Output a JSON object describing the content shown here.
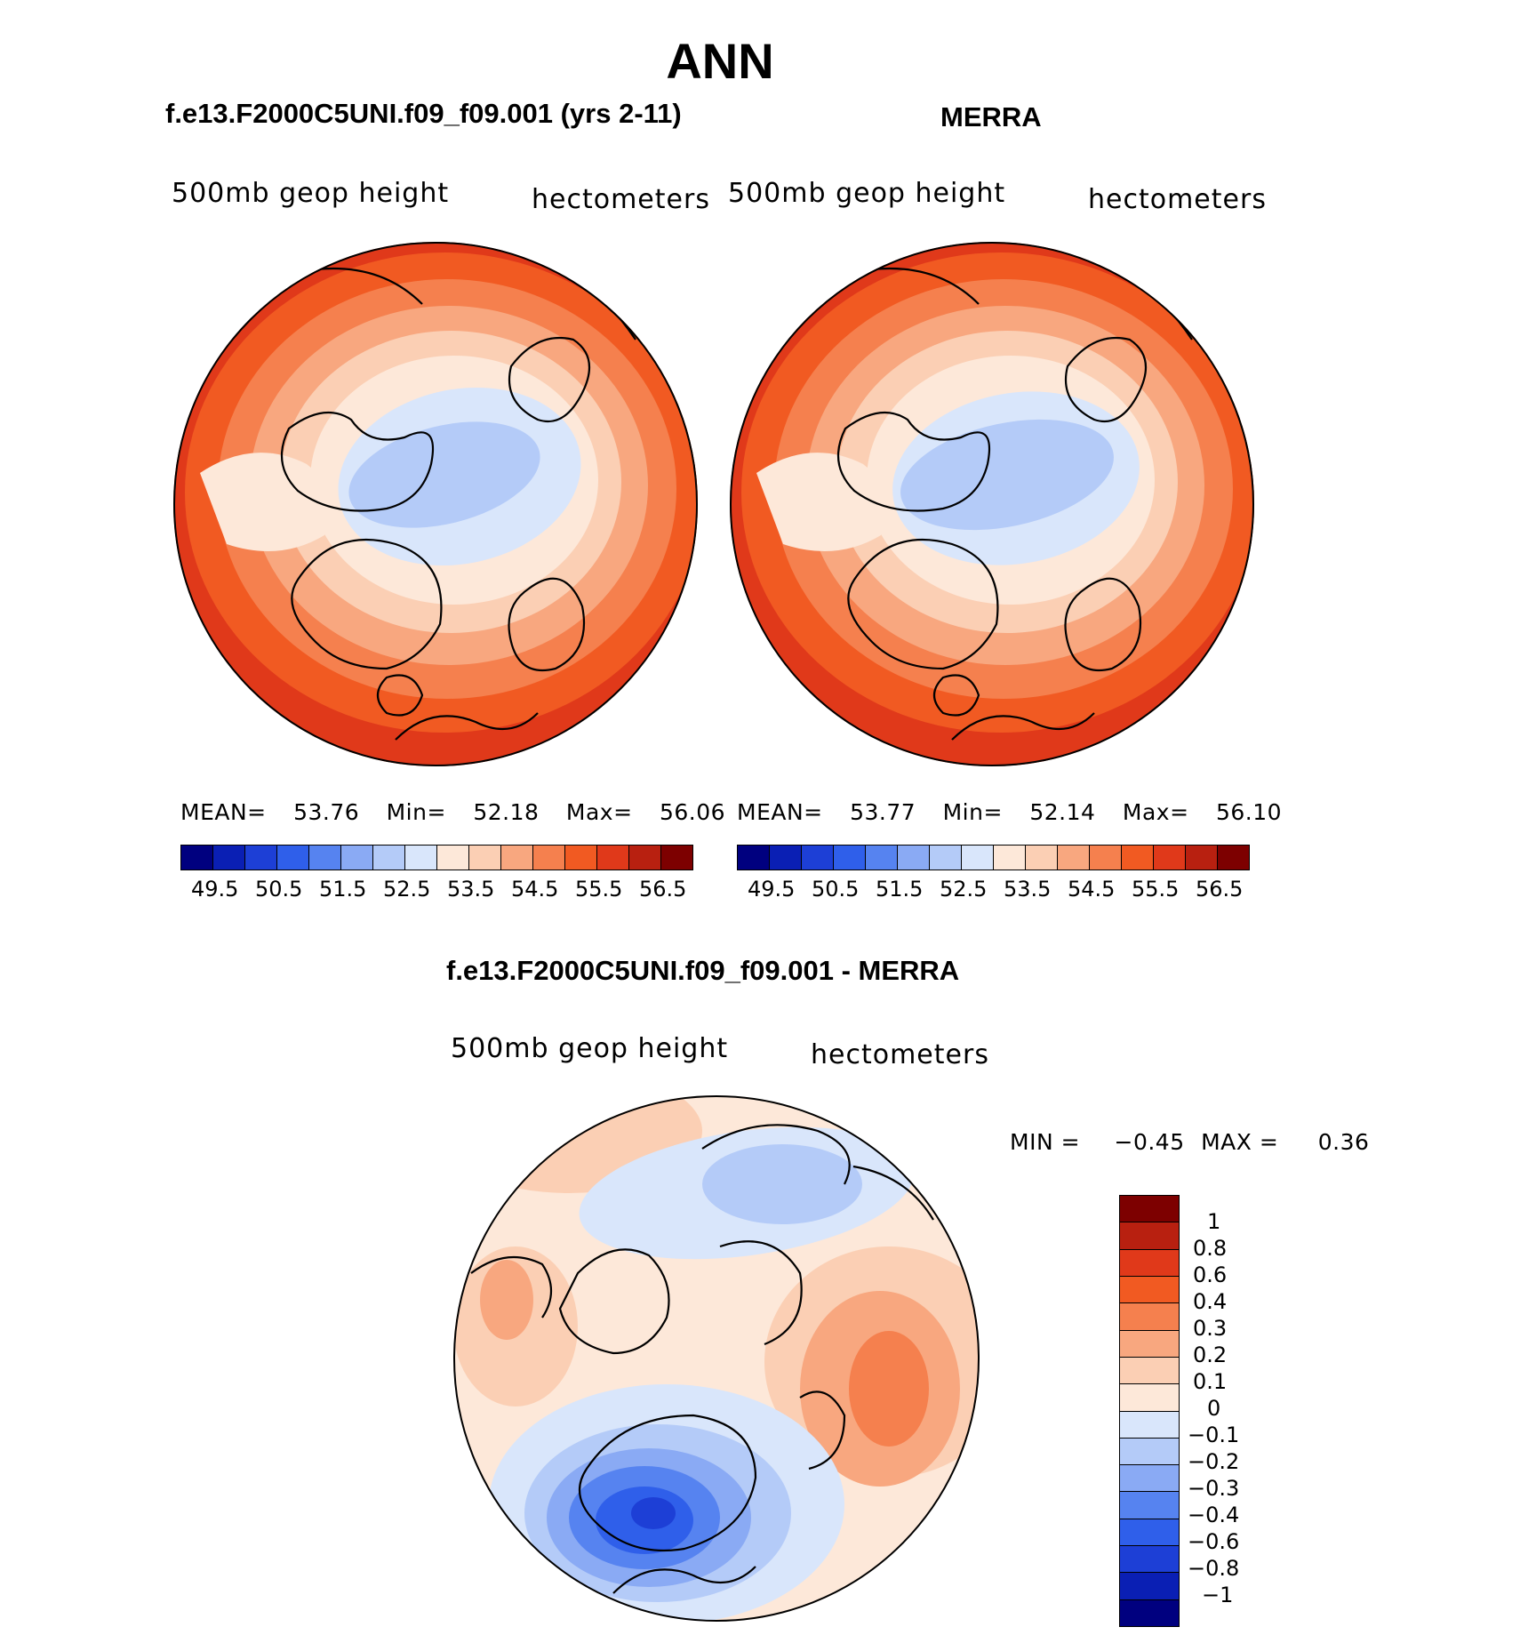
{
  "title": "ANN",
  "panels": [
    {
      "id": "model",
      "title": "f.e13.F2000C5UNI.f09_f09.001 (yrs 2-11)",
      "left_text": "500mb geop height",
      "right_text": "hectometers",
      "stats": {
        "mean_label": "MEAN=",
        "mean": "53.76",
        "min_label": "Min=",
        "min": "52.18",
        "max_label": "Max=",
        "max": "56.06"
      },
      "colorbar_labels": [
        "49.5",
        "50.5",
        "51.5",
        "52.5",
        "53.5",
        "54.5",
        "55.5",
        "56.5"
      ]
    },
    {
      "id": "obs",
      "title": "MERRA",
      "left_text": "500mb geop height",
      "right_text": "hectometers",
      "stats": {
        "mean_label": "MEAN=",
        "mean": "53.77",
        "min_label": "Min=",
        "min": "52.14",
        "max_label": "Max=",
        "max": "56.10"
      },
      "colorbar_labels": [
        "49.5",
        "50.5",
        "51.5",
        "52.5",
        "53.5",
        "54.5",
        "55.5",
        "56.5"
      ]
    }
  ],
  "diff": {
    "title": "f.e13.F2000C5UNI.f09_f09.001 - MERRA",
    "left_text": "500mb geop height",
    "right_text": "hectometers",
    "minmax": {
      "min_label": "MIN =",
      "min": "−0.45",
      "max_label": "MAX =",
      "max": "0.36"
    },
    "colorbar_labels": [
      "1",
      "0.8",
      "0.6",
      "0.4",
      "0.3",
      "0.2",
      "0.1",
      "0",
      "−0.1",
      "−0.2",
      "−0.3",
      "−0.4",
      "−0.6",
      "−0.8",
      "−1"
    ]
  },
  "colors": {
    "abs_scale": [
      "#00007f",
      "#0a1fb4",
      "#1d3fd6",
      "#2f5fea",
      "#5683f0",
      "#8aaaf4",
      "#b4cbf8",
      "#d9e6fb",
      "#fde8d9",
      "#fbcfb4",
      "#f8a77f",
      "#f5804e",
      "#f15a22",
      "#e0391a",
      "#b82010",
      "#7d0000"
    ],
    "diff_scale": [
      "#7d0000",
      "#b82010",
      "#e0391a",
      "#f15a22",
      "#f5804e",
      "#f8a77f",
      "#fbcfb4",
      "#fde8d9",
      "#d9e6fb",
      "#b4cbf8",
      "#8aaaf4",
      "#5683f0",
      "#2f5fea",
      "#1d3fd6",
      "#0a1fb4",
      "#00007f"
    ]
  }
}
